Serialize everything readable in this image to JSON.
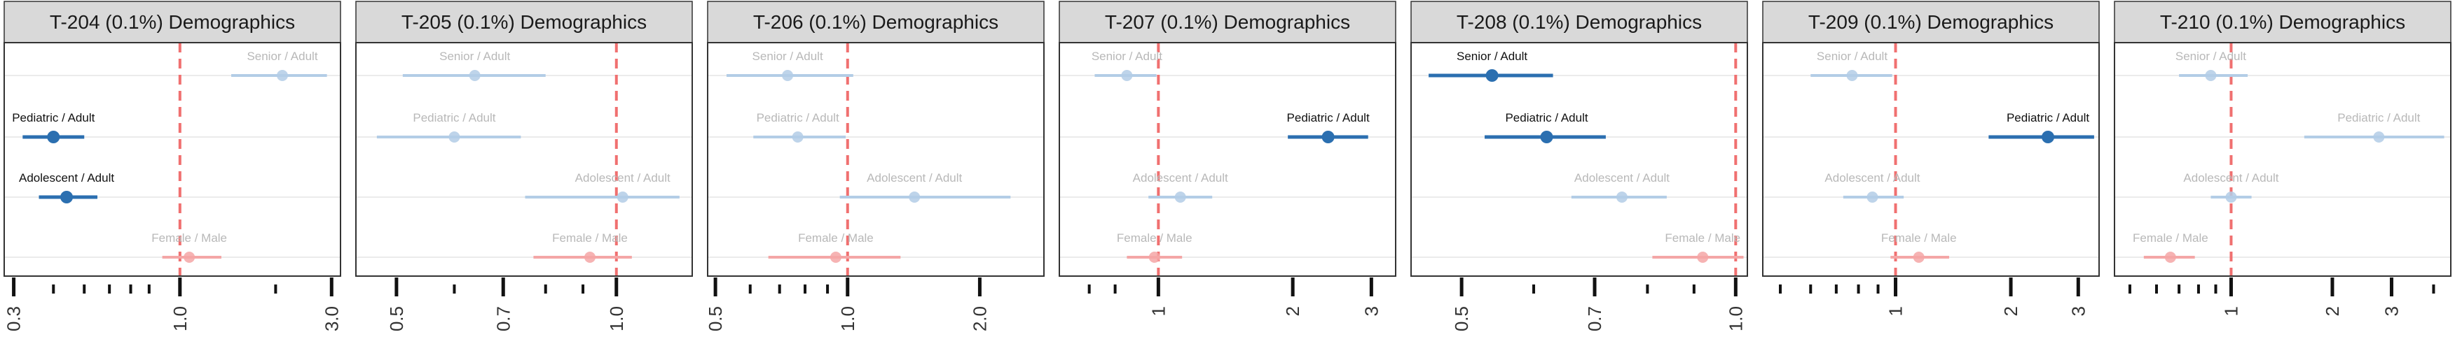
{
  "chart_data": [
    {
      "type": "scatter",
      "title": "T-204 (0.1%) Demographics",
      "xscale": "log",
      "xlim": [
        0.28,
        3.2
      ],
      "ticks": [
        {
          "v": 0.3,
          "label": "0.3"
        },
        {
          "v": 1.0,
          "label": "1.0"
        },
        {
          "v": 3.0,
          "label": "3.0"
        }
      ],
      "minor_ticks": [
        0.4,
        0.5,
        0.6,
        0.7,
        0.8,
        2.0
      ],
      "reference_line": 1.0,
      "points": [
        {
          "label": "Senior / Adult",
          "row": 0,
          "est": 2.1,
          "lo": 1.45,
          "hi": 2.9,
          "group": "age",
          "highlight": false
        },
        {
          "label": "Pediatric / Adult",
          "row": 1,
          "est": 0.4,
          "lo": 0.32,
          "hi": 0.5,
          "group": "age",
          "highlight": true
        },
        {
          "label": "Adolescent / Adult",
          "row": 2,
          "est": 0.44,
          "lo": 0.36,
          "hi": 0.55,
          "group": "age",
          "highlight": true
        },
        {
          "label": "Female / Male",
          "row": 3,
          "est": 1.07,
          "lo": 0.88,
          "hi": 1.35,
          "group": "sex",
          "highlight": false
        }
      ]
    },
    {
      "type": "scatter",
      "title": "T-205 (0.1%) Demographics",
      "xscale": "log",
      "xlim": [
        0.44,
        1.27
      ],
      "ticks": [
        {
          "v": 0.5,
          "label": "0.5"
        },
        {
          "v": 0.7,
          "label": "0.7"
        },
        {
          "v": 1.0,
          "label": "1.0"
        }
      ],
      "minor_ticks": [
        0.6,
        0.8,
        0.9
      ],
      "reference_line": 1.0,
      "points": [
        {
          "label": "Senior / Adult",
          "row": 0,
          "est": 0.64,
          "lo": 0.51,
          "hi": 0.8,
          "group": "age",
          "highlight": false
        },
        {
          "label": "Pediatric / Adult",
          "row": 1,
          "est": 0.6,
          "lo": 0.47,
          "hi": 0.74,
          "group": "age",
          "highlight": false
        },
        {
          "label": "Adolescent / Adult",
          "row": 2,
          "est": 1.02,
          "lo": 0.75,
          "hi": 1.22,
          "group": "age",
          "highlight": false
        },
        {
          "label": "Female / Male",
          "row": 3,
          "est": 0.92,
          "lo": 0.77,
          "hi": 1.05,
          "group": "sex",
          "highlight": false
        }
      ]
    },
    {
      "type": "scatter",
      "title": "T-206 (0.1%) Demographics",
      "xscale": "log",
      "xlim": [
        0.48,
        2.8
      ],
      "ticks": [
        {
          "v": 0.5,
          "label": "0.5"
        },
        {
          "v": 1.0,
          "label": "1.0"
        },
        {
          "v": 2.0,
          "label": "2.0"
        }
      ],
      "minor_ticks": [
        0.6,
        0.7,
        0.8,
        0.9
      ],
      "reference_line": 1.0,
      "points": [
        {
          "label": "Senior / Adult",
          "row": 0,
          "est": 0.73,
          "lo": 0.53,
          "hi": 1.03,
          "group": "age",
          "highlight": false
        },
        {
          "label": "Pediatric / Adult",
          "row": 1,
          "est": 0.77,
          "lo": 0.61,
          "hi": 0.99,
          "group": "age",
          "highlight": false
        },
        {
          "label": "Adolescent / Adult",
          "row": 2,
          "est": 1.42,
          "lo": 0.96,
          "hi": 2.35,
          "group": "age",
          "highlight": false
        },
        {
          "label": "Female / Male",
          "row": 3,
          "est": 0.94,
          "lo": 0.66,
          "hi": 1.32,
          "group": "sex",
          "highlight": false
        }
      ]
    },
    {
      "type": "scatter",
      "title": "T-207 (0.1%) Demographics",
      "xscale": "log",
      "xlim": [
        0.6,
        3.4
      ],
      "ticks": [
        {
          "v": 1,
          "label": "1"
        },
        {
          "v": 2,
          "label": "2"
        },
        {
          "v": 3,
          "label": "3"
        }
      ],
      "minor_ticks": [
        0.7,
        0.8
      ],
      "reference_line": 1.0,
      "points": [
        {
          "label": "Senior / Adult",
          "row": 0,
          "est": 0.85,
          "lo": 0.72,
          "hi": 0.99,
          "group": "age",
          "highlight": false
        },
        {
          "label": "Pediatric / Adult",
          "row": 1,
          "est": 2.4,
          "lo": 1.95,
          "hi": 2.95,
          "group": "age",
          "highlight": true
        },
        {
          "label": "Adolescent / Adult",
          "row": 2,
          "est": 1.12,
          "lo": 0.95,
          "hi": 1.32,
          "group": "age",
          "highlight": false
        },
        {
          "label": "Female / Male",
          "row": 3,
          "est": 0.98,
          "lo": 0.85,
          "hi": 1.13,
          "group": "sex",
          "highlight": false
        }
      ]
    },
    {
      "type": "scatter",
      "title": "T-208 (0.1%) Demographics",
      "xscale": "log",
      "xlim": [
        0.44,
        1.03
      ],
      "ticks": [
        {
          "v": 0.5,
          "label": "0.5"
        },
        {
          "v": 0.7,
          "label": "0.7"
        },
        {
          "v": 1.0,
          "label": "1.0"
        }
      ],
      "minor_ticks": [
        0.6,
        0.8,
        0.9
      ],
      "reference_line": 1.0,
      "points": [
        {
          "label": "Senior / Adult",
          "row": 0,
          "est": 0.54,
          "lo": 0.46,
          "hi": 0.63,
          "group": "age",
          "highlight": true
        },
        {
          "label": "Pediatric / Adult",
          "row": 1,
          "est": 0.62,
          "lo": 0.53,
          "hi": 0.72,
          "group": "age",
          "highlight": true
        },
        {
          "label": "Adolescent / Adult",
          "row": 2,
          "est": 0.75,
          "lo": 0.66,
          "hi": 0.84,
          "group": "age",
          "highlight": false
        },
        {
          "label": "Female / Male",
          "row": 3,
          "est": 0.92,
          "lo": 0.81,
          "hi": 1.02,
          "group": "sex",
          "highlight": false
        }
      ]
    },
    {
      "type": "scatter",
      "title": "T-209 (0.1%) Demographics",
      "xscale": "log",
      "xlim": [
        0.45,
        3.4
      ],
      "ticks": [
        {
          "v": 1,
          "label": "1"
        },
        {
          "v": 2,
          "label": "2"
        },
        {
          "v": 3,
          "label": "3"
        }
      ],
      "minor_ticks": [
        0.5,
        0.6,
        0.7,
        0.8,
        0.9
      ],
      "reference_line": 1.0,
      "points": [
        {
          "label": "Senior / Adult",
          "row": 0,
          "est": 0.77,
          "lo": 0.6,
          "hi": 0.98,
          "group": "age",
          "highlight": false
        },
        {
          "label": "Pediatric / Adult",
          "row": 1,
          "est": 2.5,
          "lo": 1.75,
          "hi": 3.3,
          "group": "age",
          "highlight": true
        },
        {
          "label": "Adolescent / Adult",
          "row": 2,
          "est": 0.87,
          "lo": 0.73,
          "hi": 1.05,
          "group": "age",
          "highlight": false
        },
        {
          "label": "Female / Male",
          "row": 3,
          "est": 1.15,
          "lo": 0.97,
          "hi": 1.38,
          "group": "sex",
          "highlight": false
        }
      ]
    },
    {
      "type": "scatter",
      "title": "T-210 (0.1%) Demographics",
      "xscale": "log",
      "xlim": [
        0.45,
        4.5
      ],
      "ticks": [
        {
          "v": 1,
          "label": "1"
        },
        {
          "v": 2,
          "label": "2"
        },
        {
          "v": 3,
          "label": "3"
        }
      ],
      "minor_ticks": [
        0.5,
        0.6,
        0.7,
        0.8,
        0.9,
        4.0
      ],
      "reference_line": 1.0,
      "points": [
        {
          "label": "Senior / Adult",
          "row": 0,
          "est": 0.87,
          "lo": 0.7,
          "hi": 1.12,
          "group": "age",
          "highlight": false
        },
        {
          "label": "Pediatric / Adult",
          "row": 1,
          "est": 2.75,
          "lo": 1.65,
          "hi": 4.3,
          "group": "age",
          "highlight": false
        },
        {
          "label": "Adolescent / Adult",
          "row": 2,
          "est": 1.0,
          "lo": 0.87,
          "hi": 1.15,
          "group": "age",
          "highlight": false
        },
        {
          "label": "Female / Male",
          "row": 3,
          "est": 0.66,
          "lo": 0.55,
          "hi": 0.78,
          "group": "sex",
          "highlight": false
        }
      ]
    }
  ],
  "colors": {
    "age_strong": "#2b6fb0",
    "age_faint": "#b3cde6",
    "sex_faint": "#f4a6a6",
    "reference_line": "#f07070",
    "strip_fill": "#d9d9d9",
    "gridline": "#ebebeb",
    "faint_label": "#b8b8b8",
    "strong_label": "#111111"
  }
}
